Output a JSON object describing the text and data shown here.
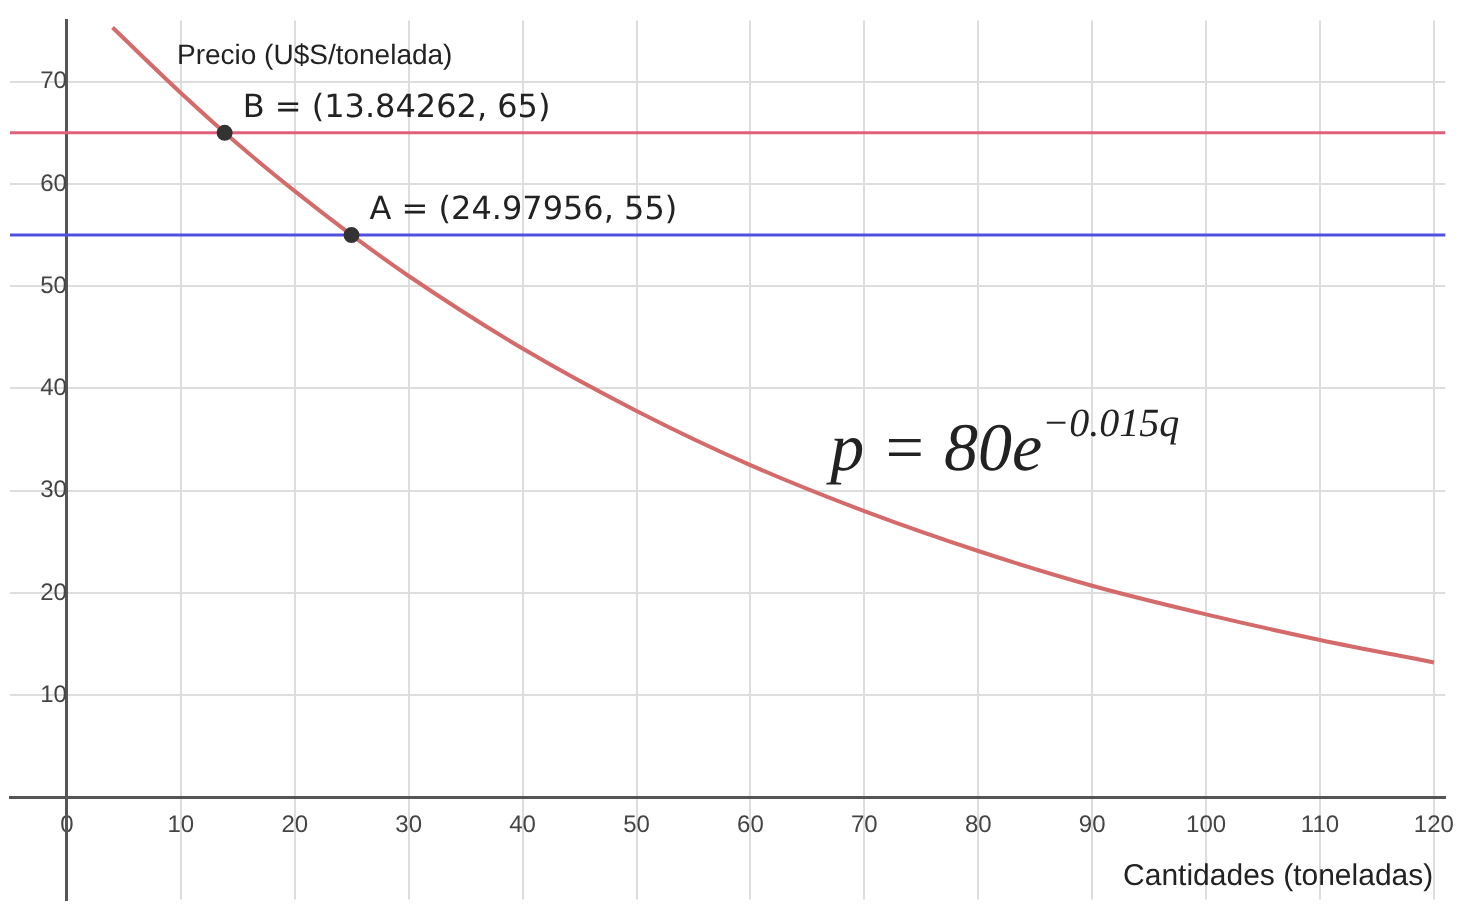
{
  "chart_data": {
    "type": "line",
    "xlabel": "Cantidades (toneladas)",
    "ylabel": "Precio (U$S/tonelada)",
    "xlim": [
      -5,
      121
    ],
    "ylim": [
      -10,
      76
    ],
    "xticks": [
      0,
      10,
      20,
      30,
      40,
      50,
      60,
      70,
      80,
      90,
      100,
      110,
      120
    ],
    "yticks": [
      {
        "value": 0,
        "label": null
      },
      10,
      20,
      30,
      40,
      50,
      60,
      70
    ],
    "grid": true,
    "legend": false,
    "series": [
      {
        "color": "#d46a6a",
        "marker": "none",
        "x": [
          4,
          10,
          15,
          20,
          25,
          30,
          40,
          50,
          60,
          70,
          80,
          90,
          100,
          110,
          120
        ],
        "values": [
          75.3,
          68.9,
          63.9,
          59.3,
          55.0,
          51.0,
          43.9,
          37.8,
          32.5,
          28.0,
          24.1,
          20.7,
          17.9,
          15.4,
          13.2
        ]
      },
      {
        "type": "scatter",
        "color": "#333333",
        "marker": "circle",
        "x": [
          13.84262,
          24.97956
        ],
        "values": [
          65,
          55
        ]
      }
    ],
    "ref_lines": [
      {
        "axis": "y",
        "value": 65,
        "label": null,
        "color": "#e0607a"
      },
      {
        "axis": "y",
        "value": 55,
        "label": null,
        "color": "#5050e0"
      }
    ],
    "annotations": [
      {
        "text": "B = (13.84262, 65)",
        "x": 13.84262,
        "y": 65
      },
      {
        "text": "A = (24.97956, 55)",
        "x": 24.97956,
        "y": 55
      },
      "p = 80e$^{−0.015q}$"
    ]
  }
}
